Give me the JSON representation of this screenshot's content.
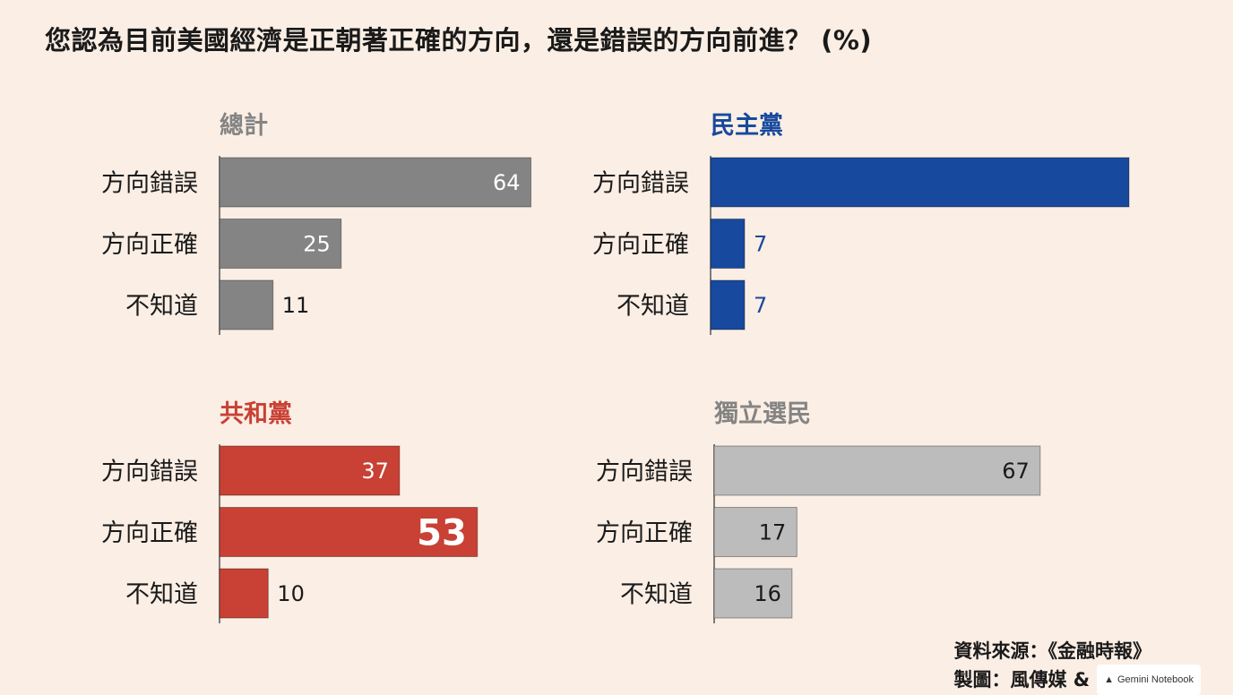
{
  "title": "您認為目前美國經濟是正朝著正確的方向，還是錯誤的方向前進？ (%)",
  "colors": {
    "background": "#fbeee4",
    "total": "#848484",
    "democrat": "#174a9e",
    "republican": "#c84134",
    "independent": "#bcbcbc",
    "axis": "#555555"
  },
  "chart_data": [
    {
      "type": "bar",
      "orientation": "horizontal",
      "title": "總計",
      "categories": [
        "方向錯誤",
        "方向正確",
        "不知道"
      ],
      "values": [
        64,
        25,
        11
      ],
      "color": "#848484",
      "title_color": "#848484",
      "value_label_color": "#ffffff",
      "emphasis_index": -1
    },
    {
      "type": "bar",
      "orientation": "horizontal",
      "title": "民主黨",
      "categories": [
        "方向錯誤",
        "方向正確",
        "不知道"
      ],
      "values": [
        86,
        7,
        7
      ],
      "color": "#174a9e",
      "title_color": "#174a9e",
      "value_label_color": "#174a9e",
      "emphasis_index": 0
    },
    {
      "type": "bar",
      "orientation": "horizontal",
      "title": "共和黨",
      "categories": [
        "方向錯誤",
        "方向正確",
        "不知道"
      ],
      "values": [
        37,
        53,
        10
      ],
      "color": "#c84134",
      "title_color": "#c84134",
      "value_label_color": "#ffffff",
      "emphasis_index": 1
    },
    {
      "type": "bar",
      "orientation": "horizontal",
      "title": "獨立選民",
      "categories": [
        "方向錯誤",
        "方向正確",
        "不知道"
      ],
      "values": [
        67,
        17,
        16
      ],
      "color": "#bcbcbc",
      "title_color": "#848484",
      "value_label_color": "#1a1a1a",
      "emphasis_index": -1
    }
  ],
  "source": {
    "line1": "資料來源：《金融時報》",
    "line2": "製圖：風傳媒 &",
    "badge_text": "Gemini Notebook",
    "badge_icon": "notebook-icon"
  }
}
